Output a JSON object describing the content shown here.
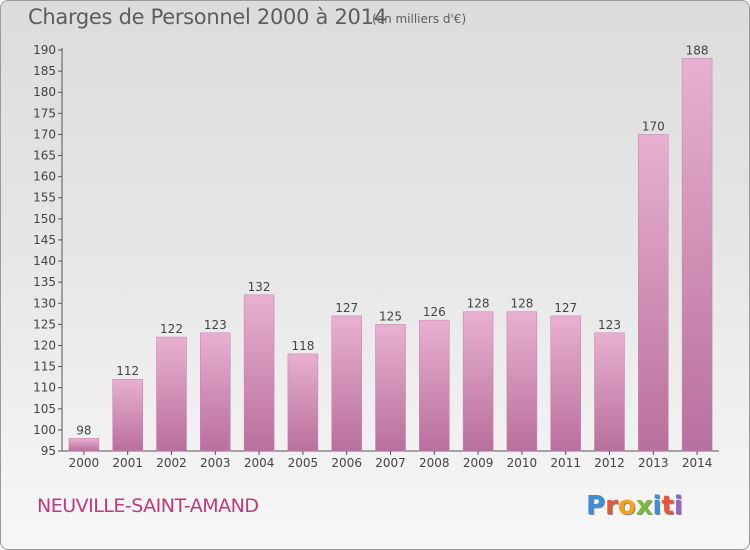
{
  "header": {
    "title": "Charges de Personnel 2000 à 2014",
    "subtitle": "(en milliers d'€)"
  },
  "footer": {
    "commune": "NEUVILLE-SAINT-AMAND",
    "logo": "Proxiti"
  },
  "colors": {
    "bar": "#d48fb8",
    "bar_light": "#e8b0d0",
    "bar_dark": "#b8709c",
    "title": "#5d5d5d",
    "commune": "#c0397e",
    "logo_letters": [
      "#3b8fd6",
      "#e7553a",
      "#f2a21c",
      "#7dbb3a",
      "#3b8fd6",
      "#e7553a",
      "#9c5fc4"
    ]
  },
  "chart_data": {
    "type": "bar",
    "categories": [
      "2000",
      "2001",
      "2002",
      "2003",
      "2004",
      "2005",
      "2006",
      "2007",
      "2008",
      "2009",
      "2010",
      "2011",
      "2012",
      "2013",
      "2014"
    ],
    "values": [
      98,
      112,
      122,
      123,
      132,
      118,
      127,
      125,
      126,
      128,
      128,
      127,
      123,
      170,
      188
    ],
    "ylim": [
      95,
      190
    ],
    "yticks": [
      95,
      100,
      105,
      110,
      115,
      120,
      125,
      130,
      135,
      140,
      145,
      150,
      155,
      160,
      165,
      170,
      175,
      180,
      185,
      190
    ],
    "grid": false,
    "data_labels": true
  }
}
